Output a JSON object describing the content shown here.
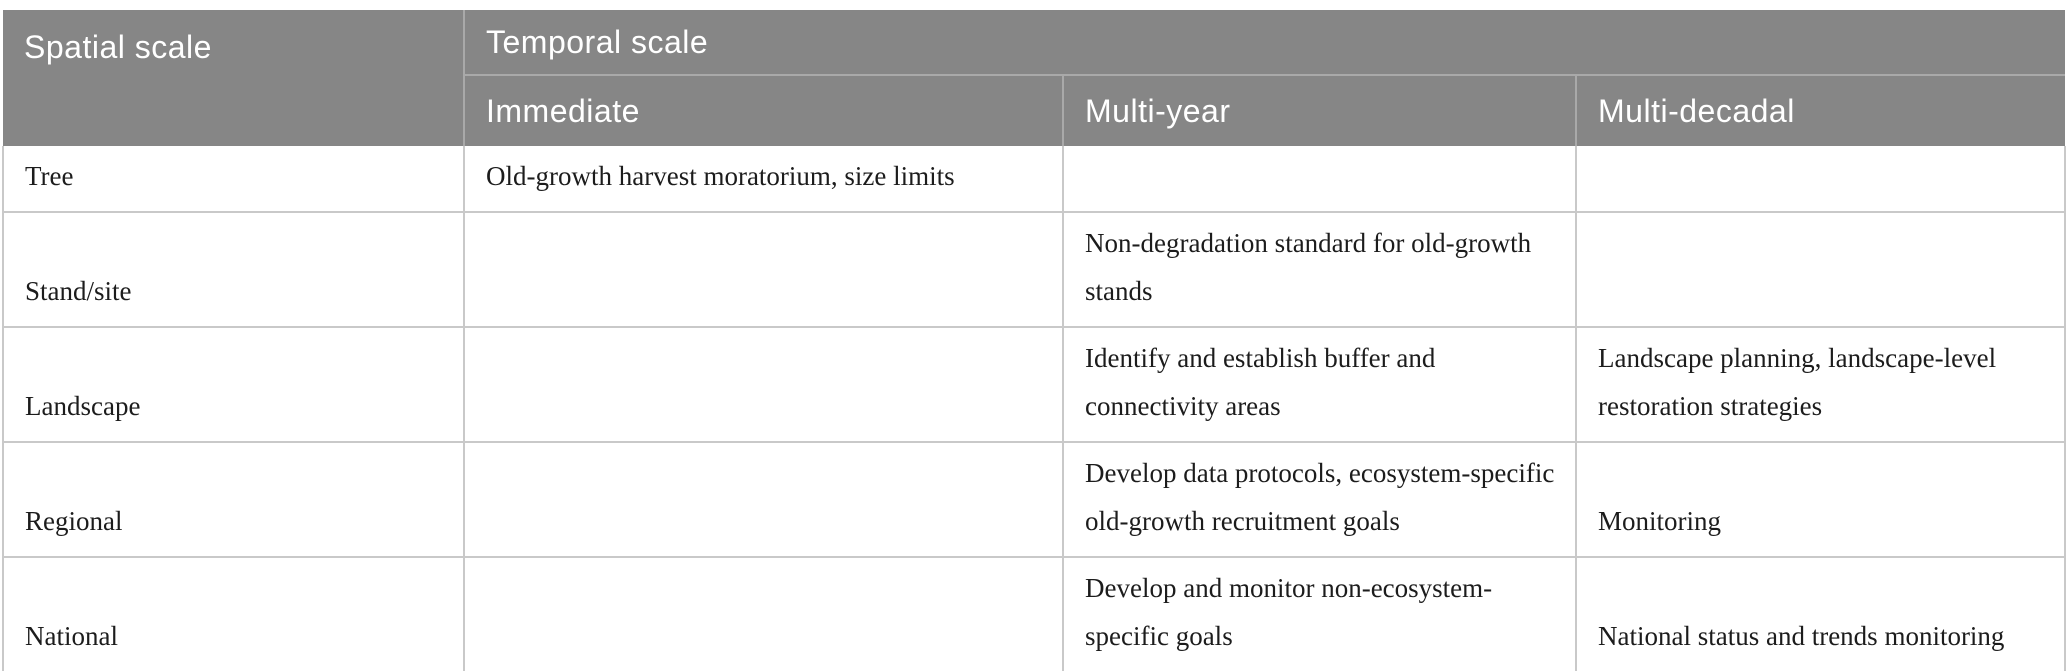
{
  "table": {
    "header": {
      "spatial_label": "Spatial scale",
      "temporal_label": "Temporal scale",
      "columns": [
        "Immediate",
        "Multi-year",
        "Multi-decadal"
      ]
    },
    "rows": [
      {
        "label": "Tree",
        "immediate": "Old-growth harvest moratorium, size limits",
        "multi_year": "",
        "multi_decadal": ""
      },
      {
        "label": "Stand/site",
        "immediate": "",
        "multi_year": "Non-degradation standard for old-growth stands",
        "multi_decadal": ""
      },
      {
        "label": "Landscape",
        "immediate": "",
        "multi_year": "Identify and establish buffer and connectivity areas",
        "multi_decadal": "Landscape planning, landscape-level restoration strategies"
      },
      {
        "label": "Regional",
        "immediate": "",
        "multi_year": "Develop data protocols, ecosystem-specific old-growth recruitment goals",
        "multi_decadal": "Monitoring"
      },
      {
        "label": "National",
        "immediate": "",
        "multi_year": "Develop and monitor non-ecosystem-specific goals",
        "multi_decadal": "National status and trends monitoring"
      }
    ],
    "colors": {
      "header_bg": "#868686",
      "header_divider": "#a9a9a9",
      "header_text": "#ffffff",
      "body_text": "#1c1c1c",
      "body_border": "#c9c9c9",
      "bottom_border": "#b3b3b3"
    }
  }
}
